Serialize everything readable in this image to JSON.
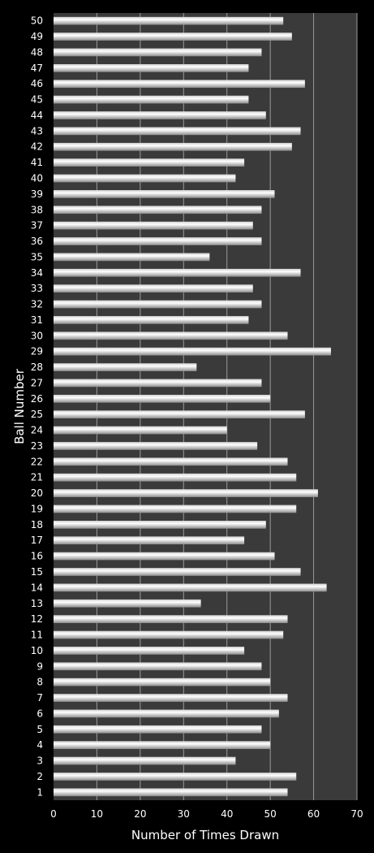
{
  "chart_data": {
    "type": "bar",
    "orientation": "horizontal",
    "xlabel": "Number of Times Drawn",
    "ylabel": "Ball Number",
    "xlim": [
      0,
      70
    ],
    "xticks": [
      "0",
      "10",
      "20",
      "30",
      "40",
      "50",
      "60",
      "70"
    ],
    "grid": "vertical",
    "categories": [
      "1",
      "2",
      "3",
      "4",
      "5",
      "6",
      "7",
      "8",
      "9",
      "10",
      "11",
      "12",
      "13",
      "14",
      "15",
      "16",
      "17",
      "18",
      "19",
      "20",
      "21",
      "22",
      "23",
      "24",
      "25",
      "26",
      "27",
      "28",
      "29",
      "30",
      "31",
      "32",
      "33",
      "34",
      "35",
      "36",
      "37",
      "38",
      "39",
      "40",
      "41",
      "42",
      "43",
      "44",
      "45",
      "46",
      "47",
      "48",
      "49",
      "50"
    ],
    "values": [
      54,
      56,
      42,
      50,
      48,
      52,
      54,
      50,
      48,
      44,
      53,
      54,
      34,
      63,
      57,
      51,
      44,
      49,
      56,
      61,
      56,
      54,
      47,
      40,
      58,
      50,
      48,
      33,
      64,
      54,
      45,
      48,
      46,
      57,
      36,
      48,
      46,
      48,
      51,
      42,
      44,
      55,
      57,
      49,
      45,
      58,
      45,
      48,
      55,
      53
    ],
    "colors": {
      "background": "#000000",
      "plot_area": "#3a3a3a",
      "bar_light": "#ffffff",
      "bar_dark": "#9a9a9a",
      "grid": "#9a9a9a"
    }
  }
}
